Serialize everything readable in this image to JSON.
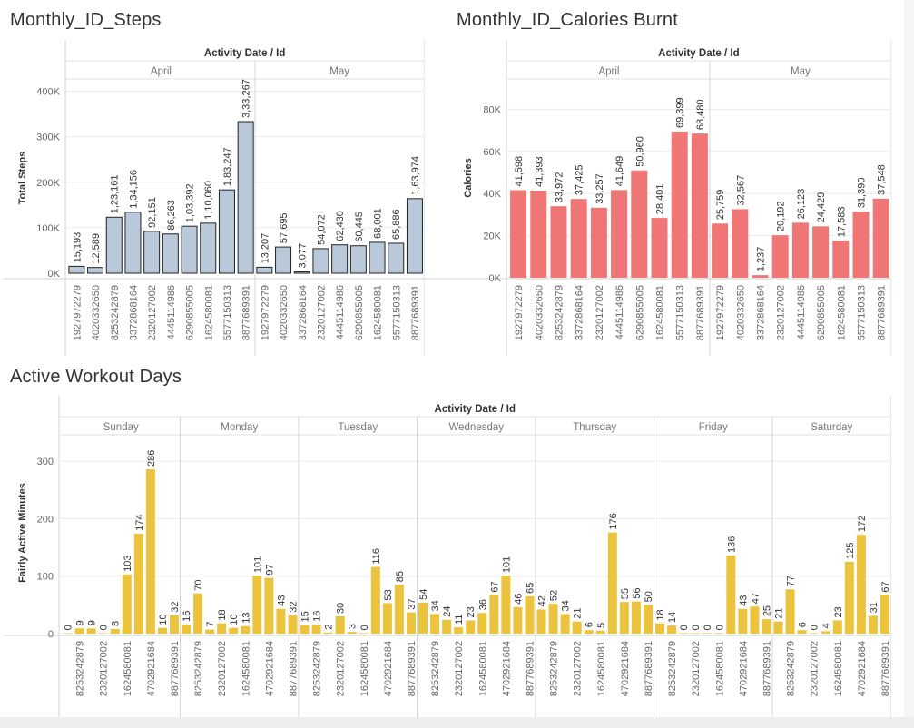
{
  "colors": {
    "steps": "#b9c9da",
    "calories": "#f07575",
    "workout": "#ebc33c",
    "axis_text": "#666666",
    "grid": "#ececec"
  },
  "charts": [
    {
      "title": "Monthly_ID_Steps",
      "chart_data": {
        "type": "bar",
        "title": "Monthly_ID_Steps",
        "header": "Activity Date / Id",
        "xlabel": "",
        "ylabel": "Total Steps",
        "ylim": [
          0,
          400000
        ],
        "yticks": [
          0,
          100000,
          200000,
          300000,
          400000
        ],
        "ytick_labels": [
          "0K",
          "100K",
          "200K",
          "300K",
          "400K"
        ],
        "grid": true,
        "legend": "none",
        "groups": [
          {
            "name": "April",
            "categories": [
              "1927972279",
              "4020332650",
              "8253242879",
              "3372868164",
              "2320127002",
              "4445114986",
              "6290855005",
              "1624580081",
              "5577150313",
              "8877689391"
            ],
            "values": [
              15193,
              12589,
              123161,
              134156,
              92151,
              86263,
              103392,
              110060,
              183247,
              333267
            ],
            "labels": [
              "15,193",
              "12,589",
              "1,23,161",
              "1,34,156",
              "92,151",
              "86,263",
              "1,03,392",
              "1,10,060",
              "1,83,247",
              "3,33,267"
            ]
          },
          {
            "name": "May",
            "categories": [
              "1927972279",
              "4020332650",
              "3372868164",
              "2320127002",
              "4445114986",
              "6290855005",
              "1624580081",
              "5577150313",
              "8877689391"
            ],
            "values": [
              13207,
              57695,
              3077,
              54072,
              62430,
              60445,
              68001,
              65886,
              163974
            ],
            "labels": [
              "13,207",
              "57,695",
              "3,077",
              "54,072",
              "62,430",
              "60,445",
              "68,001",
              "65,886",
              "1,63,974"
            ]
          }
        ]
      }
    },
    {
      "title": "Monthly_ID_Calories Burnt",
      "chart_data": {
        "type": "bar",
        "title": "Monthly_ID_Calories Burnt",
        "header": "Activity Date / Id",
        "xlabel": "",
        "ylabel": "Calories",
        "ylim": [
          0,
          85000
        ],
        "yticks": [
          0,
          20000,
          40000,
          60000,
          80000
        ],
        "ytick_labels": [
          "0K",
          "20K",
          "40K",
          "60K",
          "80K"
        ],
        "grid": true,
        "legend": "none",
        "groups": [
          {
            "name": "April",
            "categories": [
              "1927972279",
              "4020332650",
              "8253242879",
              "3372868164",
              "2320127002",
              "4445114986",
              "6290855005",
              "1624580081",
              "5577150313",
              "8877689391"
            ],
            "values": [
              41598,
              41393,
              33972,
              37425,
              33257,
              41649,
              50960,
              28401,
              69399,
              68480
            ],
            "labels": [
              "41,598",
              "41,393",
              "33,972",
              "37,425",
              "33,257",
              "41,649",
              "50,960",
              "28,401",
              "69,399",
              "68,480"
            ]
          },
          {
            "name": "May",
            "categories": [
              "1927972279",
              "4020332650",
              "3372868164",
              "2320127002",
              "4445114986",
              "6290855005",
              "1624580081",
              "5577150313",
              "8877689391"
            ],
            "values": [
              25759,
              32567,
              1237,
              20192,
              26123,
              24429,
              17583,
              31390,
              37548
            ],
            "labels": [
              "25,759",
              "32,567",
              "1,237",
              "20,192",
              "26,123",
              "24,429",
              "17,583",
              "31,390",
              "37,548"
            ]
          }
        ]
      }
    },
    {
      "title": "Active Workout Days",
      "chart_data": {
        "type": "bar",
        "title": "Active Workout Days",
        "header": "Activity Date / Id",
        "xlabel": "",
        "ylabel": "Fairly Active Minutes",
        "ylim": [
          0,
          320
        ],
        "yticks": [
          0,
          100,
          200,
          300
        ],
        "ytick_labels": [
          "0",
          "100",
          "200",
          "300"
        ],
        "grid": true,
        "legend": "none",
        "groups": [
          {
            "name": "Sunday",
            "categories": [
              "",
              "8253242879",
              "",
              "2320127002",
              "",
              "1624580081",
              "",
              "4702921684",
              "",
              "8877689391"
            ],
            "values": [
              0,
              9,
              9,
              0,
              8,
              103,
              174,
              286,
              10,
              32
            ],
            "labels": [
              "0",
              "9",
              "9",
              "0",
              "8",
              "103",
              "174",
              "286",
              "10",
              "32"
            ]
          },
          {
            "name": "Monday",
            "categories": [
              "",
              "8253242879",
              "",
              "2320127002",
              "",
              "1624580081",
              "",
              "4702921684",
              "",
              "8877689391"
            ],
            "values": [
              16,
              70,
              7,
              18,
              10,
              13,
              101,
              97,
              43,
              32
            ],
            "labels": [
              "16",
              "70",
              "7",
              "18",
              "10",
              "13",
              "101",
              "97",
              "43",
              "32"
            ]
          },
          {
            "name": "Tuesday",
            "categories": [
              "",
              "8253242879",
              "",
              "2320127002",
              "",
              "1624580081",
              "",
              "4702921684",
              "",
              "8877689391"
            ],
            "values": [
              15,
              16,
              2,
              30,
              3,
              0,
              116,
              53,
              85,
              37
            ],
            "labels": [
              "15",
              "16",
              "2",
              "30",
              "3",
              "0",
              "116",
              "53",
              "85",
              "37"
            ]
          },
          {
            "name": "Wednesday",
            "categories": [
              "",
              "8253242879",
              "",
              "2320127002",
              "",
              "1624580081",
              "",
              "4702921684",
              "",
              "8877689391"
            ],
            "values": [
              54,
              34,
              24,
              11,
              23,
              36,
              67,
              101,
              46,
              65
            ],
            "labels": [
              "54",
              "34",
              "24",
              "11",
              "23",
              "36",
              "67",
              "101",
              "46",
              "65"
            ]
          },
          {
            "name": "Thursday",
            "categories": [
              "",
              "8253242879",
              "",
              "2320127002",
              "",
              "1624580081",
              "",
              "4702921684",
              "",
              "8877689391"
            ],
            "values": [
              42,
              52,
              34,
              21,
              6,
              5,
              176,
              55,
              56,
              50
            ],
            "labels": [
              "42",
              "52",
              "34",
              "21",
              "6",
              "5",
              "176",
              "55",
              "56",
              "50"
            ]
          },
          {
            "name": "Friday",
            "categories": [
              "",
              "8253242879",
              "",
              "2320127002",
              "",
              "1624580081",
              "",
              "4702921684",
              "",
              "8877689391"
            ],
            "values": [
              18,
              14,
              0,
              0,
              0,
              0,
              136,
              43,
              47,
              25
            ],
            "labels": [
              "18",
              "14",
              "0",
              "0",
              "0",
              "0",
              "136",
              "43",
              "47",
              "25"
            ]
          },
          {
            "name": "Saturday",
            "categories": [
              "",
              "8253242879",
              "",
              "2320127002",
              "",
              "1624580081",
              "",
              "4702921684",
              "",
              "8877689391"
            ],
            "values": [
              21,
              77,
              6,
              0,
              4,
              23,
              125,
              172,
              31,
              67
            ],
            "labels": [
              "21",
              "77",
              "6",
              "0",
              "4",
              "23",
              "125",
              "172",
              "31",
              "67"
            ]
          }
        ]
      }
    }
  ]
}
